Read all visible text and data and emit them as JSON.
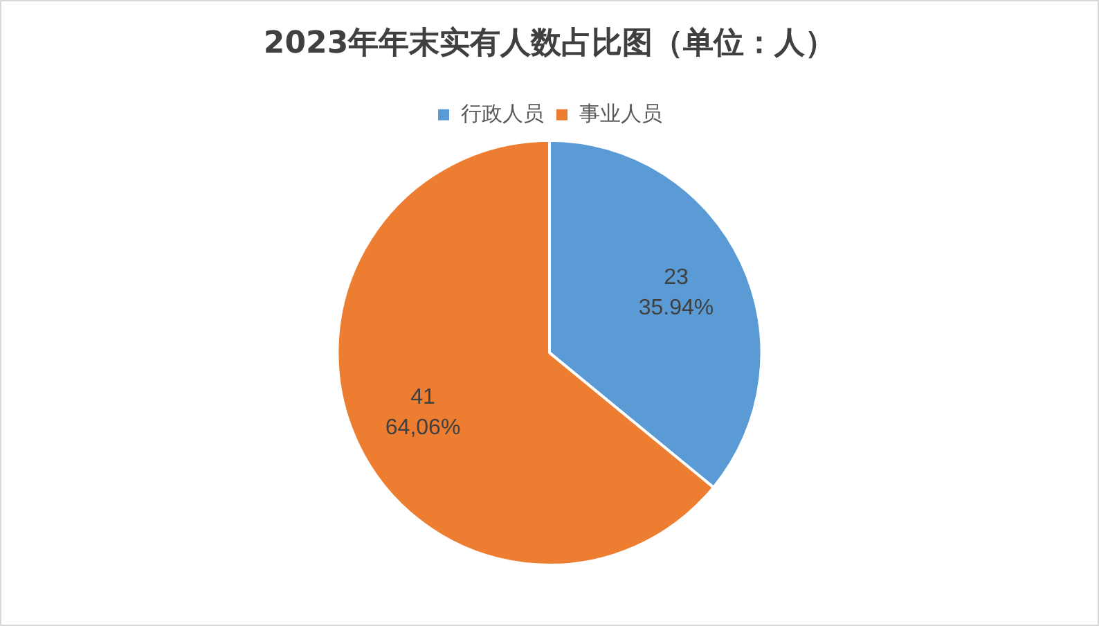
{
  "chart_data": {
    "type": "pie",
    "title": "2023年年末实有人数占比图（单位：人）",
    "categories": [
      "行政人员",
      "事业人员"
    ],
    "values": [
      23,
      41
    ],
    "colors": [
      "#5b9bd5",
      "#ed7d31"
    ],
    "value_labels": [
      "23\n35.94%",
      "41\n64,06%"
    ],
    "legend": "top"
  }
}
